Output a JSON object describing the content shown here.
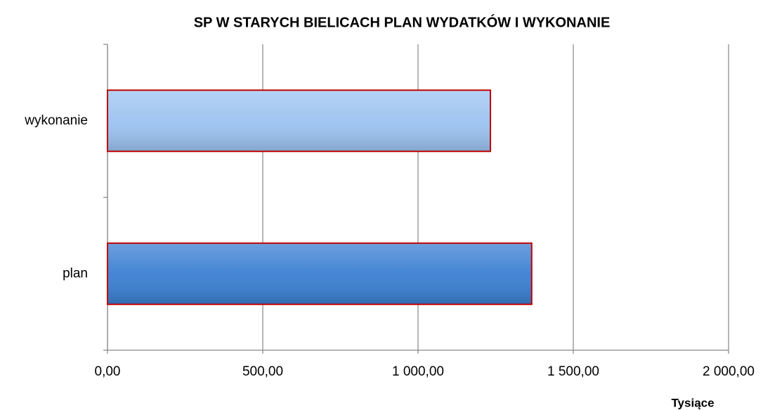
{
  "chart_data": {
    "type": "hbar",
    "title": "SP W STARYCH BIELICACH PLAN WYDATKÓW I WYKONANIE",
    "categories": [
      "plan",
      "wykonanie"
    ],
    "values": [
      1366,
      1233
    ],
    "colors": [
      "#3b7fd2",
      "#9cc3f1"
    ],
    "edge_color": "#c00000",
    "xlim": [
      0,
      2000
    ],
    "xticks": [
      {
        "value": 0,
        "label": "0,00"
      },
      {
        "value": 500,
        "label": "500,00"
      },
      {
        "value": 1000,
        "label": "1 000,00"
      },
      {
        "value": 1500,
        "label": "1 500,00"
      },
      {
        "value": 2000,
        "label": "2 000,00"
      }
    ],
    "x_unit_label": "Tysiące",
    "grid": true
  }
}
